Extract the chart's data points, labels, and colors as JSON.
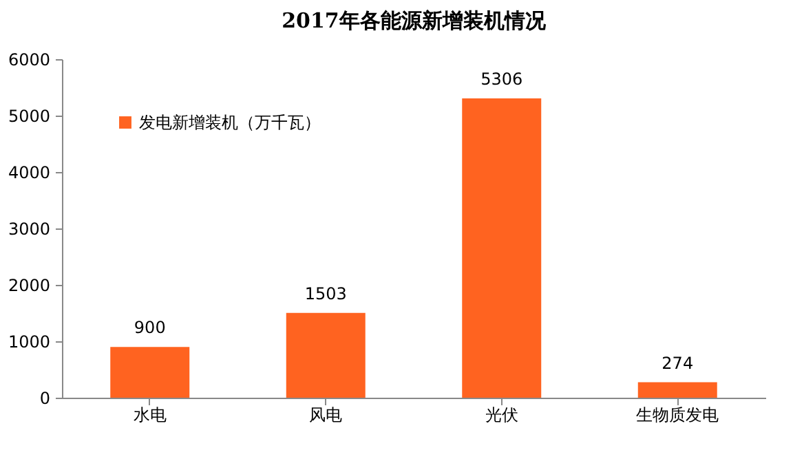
{
  "chart_data": {
    "type": "bar",
    "title": "2017年各能源新增装机情况",
    "categories": [
      "水电",
      "风电",
      "光伏",
      "生物质发电"
    ],
    "series": [
      {
        "name": "发电新增装机（万千瓦）",
        "color": "#ff6320",
        "values": [
          900,
          1503,
          5306,
          274
        ]
      }
    ],
    "ylim": [
      0,
      6000
    ],
    "yticks": [
      0,
      1000,
      2000,
      3000,
      4000,
      5000,
      6000
    ],
    "data_labels": true,
    "legend": "top left",
    "grid": false
  }
}
